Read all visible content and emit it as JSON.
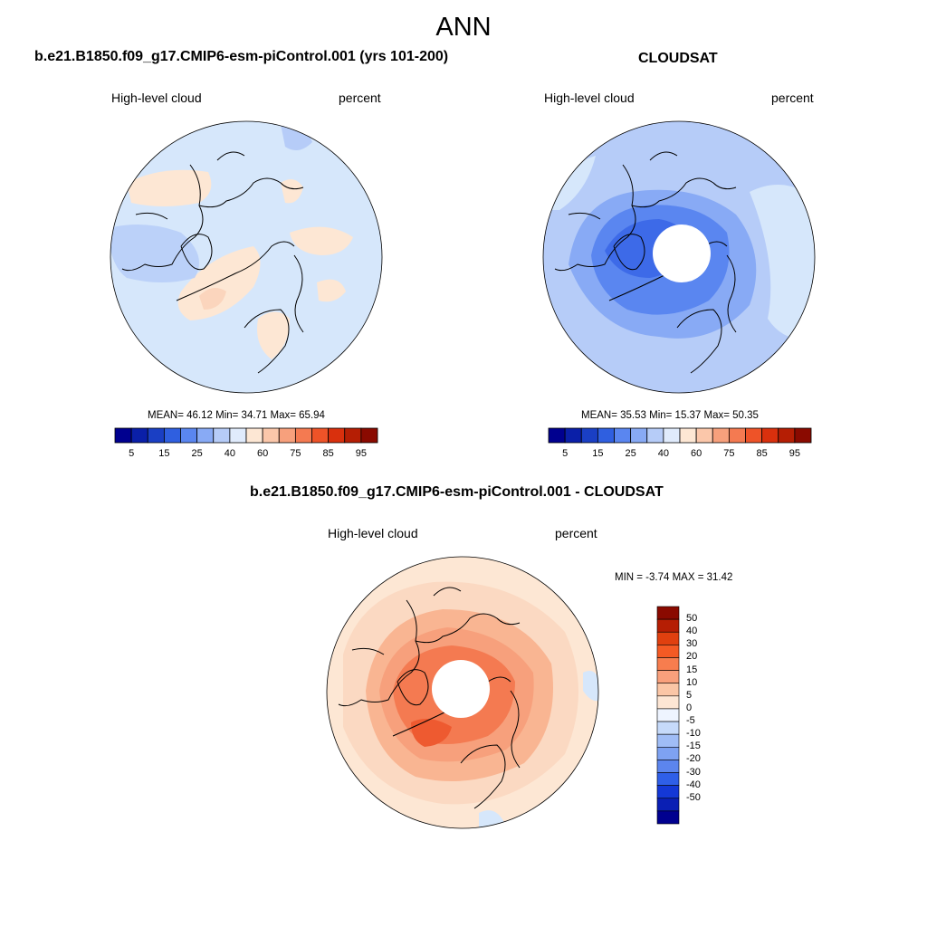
{
  "figure_title": "ANN",
  "panels": [
    {
      "title": "b.e21.B1850.f09_g17.CMIP6-esm-piControl.001 (yrs 101-200)",
      "left_label": "High-level cloud",
      "right_label": "percent",
      "stats": "MEAN=  46.12  Min=  34.71  Max=  65.94"
    },
    {
      "title": "CLOUDSAT",
      "left_label": "High-level cloud",
      "right_label": "percent",
      "stats": "MEAN=  35.53  Min=  15.37  Max=  50.35"
    },
    {
      "title": "b.e21.B1850.f09_g17.CMIP6-esm-piControl.001 - CLOUDSAT",
      "left_label": "High-level cloud",
      "right_label": "percent",
      "stats": "MIN =  -3.74 MAX =  31.42"
    }
  ],
  "abs_colorbar": {
    "colors": [
      "#00008f",
      "#0a1fa8",
      "#1a3fc4",
      "#2f5fe0",
      "#5a86f0",
      "#88aaf5",
      "#b6ccf8",
      "#e0ebfc",
      "#fde7d4",
      "#fbc7aa",
      "#f7a07c",
      "#f47a51",
      "#ee5328",
      "#d9300d",
      "#b51e04",
      "#8a0a00"
    ],
    "labels": [
      "5",
      "15",
      "25",
      "40",
      "60",
      "75",
      "85",
      "95"
    ]
  },
  "diff_colorbar": {
    "colors": [
      "#8a0a00",
      "#b51e04",
      "#e0400f",
      "#f45a24",
      "#f77d4e",
      "#f9a07c",
      "#fbc6a6",
      "#fde6d4",
      "#eef4ff",
      "#c6dafa",
      "#a0bdf6",
      "#7ea2f2",
      "#5c85ee",
      "#2f5fe8",
      "#1438d6",
      "#0a1fb4",
      "#00008f"
    ],
    "labels": [
      "50",
      "40",
      "30",
      "20",
      "15",
      "10",
      "5",
      "0",
      "-5",
      "-10",
      "-15",
      "-20",
      "-30",
      "-40",
      "-50"
    ]
  },
  "map_colors": {
    "panel1": {
      "base": "#d6e7fb",
      "low": "#b6ccf8",
      "high": "#fde7d4",
      "highmid": "#fbd5bd"
    },
    "panel2": {
      "base": "#b6ccf8",
      "lighter": "#d6e7fb",
      "mid": "#88aaf5",
      "deep": "#5a86f0",
      "deepest": "#3d6ae8"
    },
    "panel3": {
      "base": "#fbd9c2",
      "light": "#fde7d4",
      "mid": "#f7a07c",
      "deep": "#f47a51",
      "deepest": "#ee5a30",
      "neg": "#d6e7fb"
    }
  }
}
